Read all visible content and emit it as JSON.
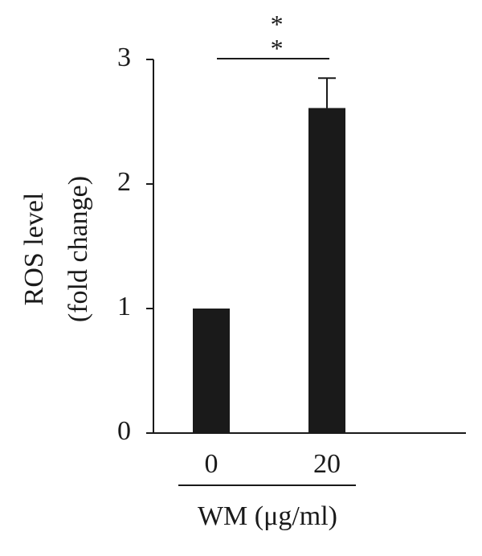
{
  "chart_data": {
    "type": "bar",
    "y_label": [
      "ROS level",
      "(fold change)"
    ],
    "x_label": "WM (μg/ml)",
    "categories": [
      "0",
      "20"
    ],
    "values": [
      1,
      2.61
    ],
    "errors": [
      null,
      0.24
    ],
    "color": "#1a1a1a",
    "significance": "**",
    "ylim": [
      0,
      3
    ],
    "yticks": [
      0,
      1,
      2,
      3
    ],
    "grid": false
  }
}
